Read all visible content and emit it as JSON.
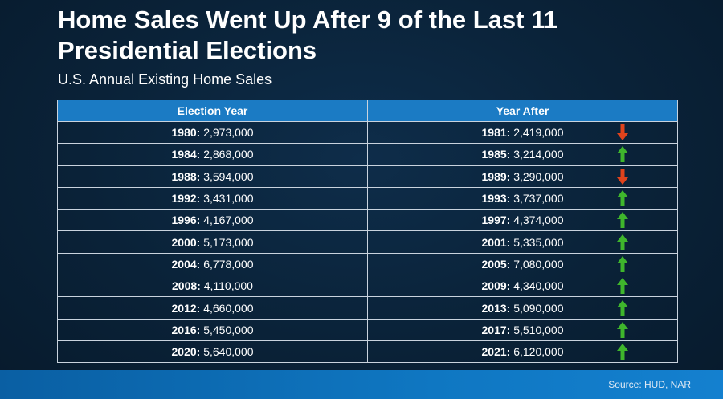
{
  "title": "Home Sales Went Up After 9 of the Last 11 Presidential Elections",
  "subtitle": "U.S. Annual Existing Home Sales",
  "source": "Source: HUD, NAR",
  "colors": {
    "header": "#1b7bc4",
    "up": "#3fb62c",
    "down": "#e0431c"
  },
  "chart_data": {
    "type": "table",
    "title": "Home Sales Went Up After 9 of the Last 11 Presidential Elections",
    "subtitle": "U.S. Annual Existing Home Sales",
    "columns": [
      "Election Year",
      "Year After"
    ],
    "rows": [
      {
        "election_year": "1980:",
        "election_sales": "2,973,000",
        "after_year": "1981:",
        "after_sales": "2,419,000",
        "trend": "down"
      },
      {
        "election_year": "1984:",
        "election_sales": "2,868,000",
        "after_year": "1985:",
        "after_sales": "3,214,000",
        "trend": "up"
      },
      {
        "election_year": "1988:",
        "election_sales": "3,594,000",
        "after_year": "1989:",
        "after_sales": "3,290,000",
        "trend": "down"
      },
      {
        "election_year": "1992:",
        "election_sales": "3,431,000",
        "after_year": "1993:",
        "after_sales": "3,737,000",
        "trend": "up"
      },
      {
        "election_year": "1996:",
        "election_sales": "4,167,000",
        "after_year": "1997:",
        "after_sales": "4,374,000",
        "trend": "up"
      },
      {
        "election_year": "2000:",
        "election_sales": "5,173,000",
        "after_year": "2001:",
        "after_sales": "5,335,000",
        "trend": "up"
      },
      {
        "election_year": "2004:",
        "election_sales": "6,778,000",
        "after_year": "2005:",
        "after_sales": "7,080,000",
        "trend": "up"
      },
      {
        "election_year": "2008:",
        "election_sales": "4,110,000",
        "after_year": "2009:",
        "after_sales": "4,340,000",
        "trend": "up"
      },
      {
        "election_year": "2012:",
        "election_sales": "4,660,000",
        "after_year": "2013:",
        "after_sales": "5,090,000",
        "trend": "up"
      },
      {
        "election_year": "2016:",
        "election_sales": "5,450,000",
        "after_year": "2017:",
        "after_sales": "5,510,000",
        "trend": "up"
      },
      {
        "election_year": "2020:",
        "election_sales": "5,640,000",
        "after_year": "2021:",
        "after_sales": "6,120,000",
        "trend": "up"
      }
    ]
  }
}
